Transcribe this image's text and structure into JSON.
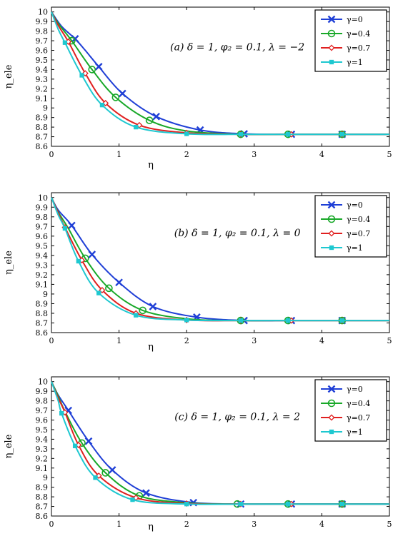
{
  "chart_data": [
    {
      "type": "line",
      "annotation": "(a)  δ = 1, φ₂ = 0.1, λ = −2",
      "xlabel": "η",
      "ylabel": "η_ele",
      "xlim": [
        0,
        5
      ],
      "ylim": [
        8.6,
        10.05
      ],
      "xticks": [
        "0",
        "1",
        "2",
        "3",
        "4",
        "5"
      ],
      "yticks": [
        "8.6",
        "8.7",
        "8.8",
        "8.9",
        "9",
        "9.1",
        "9.2",
        "9.3",
        "9.4",
        "9.5",
        "9.6",
        "9.7",
        "9.8",
        "9.9",
        "10"
      ],
      "legend_position": "top-right",
      "series": [
        {
          "name": "γ=0",
          "marker": "x",
          "color": "#1f3fd6",
          "x": [
            0,
            0.15,
            0.35,
            0.5,
            0.7,
            1.05,
            1.55,
            2.2,
            2.85,
            3.55,
            4.3,
            5
          ],
          "y": [
            10,
            9.85,
            9.72,
            9.6,
            9.43,
            9.15,
            8.91,
            8.77,
            8.73,
            8.725,
            8.725,
            8.725
          ],
          "markers_x": [
            0.35,
            0.7,
            1.05,
            1.55,
            2.2,
            2.85,
            3.55,
            4.3
          ]
        },
        {
          "name": "γ=0.4",
          "marker": "o",
          "color": "#18a828",
          "x": [
            0,
            0.1,
            0.3,
            0.6,
            0.95,
            1.45,
            2.0,
            2.8,
            3.5,
            4.3,
            5
          ],
          "y": [
            10,
            9.88,
            9.7,
            9.4,
            9.11,
            8.87,
            8.76,
            8.725,
            8.725,
            8.725,
            8.725
          ],
          "markers_x": [
            0.3,
            0.6,
            0.95,
            1.45,
            2.8,
            3.5,
            4.3
          ]
        },
        {
          "name": "γ=0.7",
          "marker": "diamond",
          "color": "#e02020",
          "x": [
            0,
            0.1,
            0.25,
            0.5,
            0.8,
            1.3,
            2.0,
            2.8,
            3.55,
            4.3,
            5
          ],
          "y": [
            10,
            9.86,
            9.69,
            9.36,
            9.05,
            8.82,
            8.74,
            8.725,
            8.725,
            8.725,
            8.725
          ],
          "markers_x": [
            0.25,
            0.5,
            0.8,
            1.3,
            2.0,
            2.8,
            3.55,
            4.3
          ]
        },
        {
          "name": "γ=1",
          "marker": "square",
          "color": "#1ec8d0",
          "x": [
            0,
            0.1,
            0.2,
            0.45,
            0.75,
            1.25,
            2.0,
            2.8,
            3.5,
            4.3,
            5
          ],
          "y": [
            10,
            9.82,
            9.68,
            9.34,
            9.03,
            8.8,
            8.73,
            8.725,
            8.725,
            8.725,
            8.725
          ],
          "markers_x": [
            0.2,
            0.45,
            0.75,
            1.25,
            2.0,
            2.8,
            3.5,
            4.3
          ]
        }
      ]
    },
    {
      "type": "line",
      "annotation": "(b)  δ = 1, φ₂ = 0.1, λ = 0",
      "xlabel": "η",
      "ylabel": "η_ele",
      "xlim": [
        0,
        5
      ],
      "ylim": [
        8.6,
        10.05
      ],
      "xticks": [
        "0",
        "1",
        "2",
        "3",
        "4",
        "5"
      ],
      "yticks": [
        "8.6",
        "8.7",
        "8.8",
        "8.9",
        "9",
        "9.1",
        "9.2",
        "9.3",
        "9.4",
        "9.5",
        "9.6",
        "9.7",
        "9.8",
        "9.9",
        "10"
      ],
      "legend_position": "top-right",
      "series": [
        {
          "name": "γ=0",
          "marker": "x",
          "color": "#1f3fd6",
          "x": [
            0,
            0.1,
            0.3,
            0.6,
            1.0,
            1.5,
            2.15,
            2.85,
            3.55,
            4.3,
            5
          ],
          "y": [
            10,
            9.87,
            9.71,
            9.41,
            9.12,
            8.87,
            8.76,
            8.725,
            8.725,
            8.725,
            8.725
          ],
          "markers_x": [
            0.3,
            0.6,
            1.0,
            1.5,
            2.15,
            2.85,
            3.55,
            4.3
          ]
        },
        {
          "name": "γ=0.4",
          "marker": "o",
          "color": "#18a828",
          "x": [
            0,
            0.1,
            0.25,
            0.5,
            0.85,
            1.35,
            2.05,
            2.8,
            3.5,
            4.3,
            5
          ],
          "y": [
            10,
            9.85,
            9.68,
            9.37,
            9.06,
            8.83,
            8.74,
            8.725,
            8.725,
            8.725,
            8.725
          ],
          "markers_x": [
            0.5,
            0.85,
            1.35,
            2.8,
            3.5,
            4.3
          ]
        },
        {
          "name": "γ=0.7",
          "marker": "diamond",
          "color": "#e02020",
          "x": [
            0,
            0.1,
            0.2,
            0.45,
            0.75,
            1.25,
            2.0,
            2.8,
            3.55,
            4.3,
            5
          ],
          "y": [
            10,
            9.84,
            9.69,
            9.35,
            9.04,
            8.8,
            8.73,
            8.725,
            8.725,
            8.725,
            8.725
          ],
          "markers_x": [
            0.2,
            0.45,
            0.75,
            1.25,
            2.0,
            2.8,
            3.55,
            4.3
          ]
        },
        {
          "name": "γ=1",
          "marker": "square",
          "color": "#1ec8d0",
          "x": [
            0,
            0.1,
            0.2,
            0.4,
            0.7,
            1.25,
            2.0,
            2.8,
            3.5,
            4.3,
            5
          ],
          "y": [
            10,
            9.82,
            9.68,
            9.34,
            9.01,
            8.78,
            8.73,
            8.725,
            8.725,
            8.725,
            8.725
          ],
          "markers_x": [
            0.2,
            0.4,
            0.7,
            1.25,
            2.0,
            2.8,
            3.5,
            4.3
          ]
        }
      ]
    },
    {
      "type": "line",
      "annotation": "(c)  δ = 1, φ₂ = 0.1, λ = 2",
      "xlabel": "η",
      "ylabel": "η_ele",
      "xlim": [
        0,
        5
      ],
      "ylim": [
        8.6,
        10.05
      ],
      "xticks": [
        "0",
        "1",
        "2",
        "3",
        "4",
        "5"
      ],
      "yticks": [
        "8.6",
        "8.7",
        "8.8",
        "8.9",
        "9",
        "9.1",
        "9.2",
        "9.3",
        "9.4",
        "9.5",
        "9.6",
        "9.7",
        "9.8",
        "9.9",
        "10"
      ],
      "legend_position": "top-right",
      "series": [
        {
          "name": "γ=0",
          "marker": "x",
          "color": "#1f3fd6",
          "x": [
            0,
            0.1,
            0.25,
            0.55,
            0.9,
            1.4,
            2.1,
            2.8,
            3.55,
            4.3,
            5
          ],
          "y": [
            10,
            9.86,
            9.7,
            9.38,
            9.08,
            8.84,
            8.74,
            8.725,
            8.725,
            8.725,
            8.725
          ],
          "markers_x": [
            0.25,
            0.55,
            0.9,
            1.4,
            2.1,
            2.8,
            3.55,
            4.3
          ]
        },
        {
          "name": "γ=0.4",
          "marker": "o",
          "color": "#18a828",
          "x": [
            0,
            0.1,
            0.2,
            0.45,
            0.8,
            1.3,
            2.05,
            2.75,
            3.5,
            4.3,
            5
          ],
          "y": [
            10,
            9.85,
            9.69,
            9.36,
            9.05,
            8.81,
            8.735,
            8.725,
            8.725,
            8.725,
            8.725
          ],
          "markers_x": [
            0.45,
            0.8,
            1.3,
            2.75,
            3.5,
            4.3
          ]
        },
        {
          "name": "γ=0.7",
          "marker": "diamond",
          "color": "#e02020",
          "x": [
            0,
            0.1,
            0.2,
            0.4,
            0.7,
            1.25,
            2.0,
            2.8,
            3.55,
            4.3,
            5
          ],
          "y": [
            10,
            9.83,
            9.68,
            9.34,
            9.02,
            8.79,
            8.73,
            8.725,
            8.725,
            8.725,
            8.725
          ],
          "markers_x": [
            0.2,
            0.4,
            0.7,
            1.25,
            2.0,
            2.8,
            3.55,
            4.3
          ]
        },
        {
          "name": "γ=1",
          "marker": "square",
          "color": "#1ec8d0",
          "x": [
            0,
            0.1,
            0.15,
            0.35,
            0.65,
            1.2,
            2.0,
            2.8,
            3.5,
            4.3,
            5
          ],
          "y": [
            10,
            9.8,
            9.67,
            9.33,
            9.0,
            8.77,
            8.725,
            8.725,
            8.725,
            8.725,
            8.725
          ],
          "markers_x": [
            0.15,
            0.35,
            0.65,
            1.2,
            2.0,
            2.8,
            3.5,
            4.3
          ]
        }
      ]
    }
  ]
}
